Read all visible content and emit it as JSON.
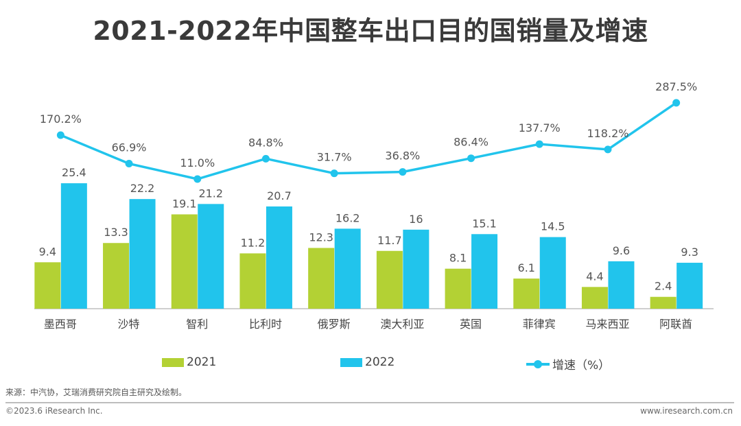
{
  "title": "2021-2022年中国整车出口目的国销量及增速",
  "colors": {
    "bar2021": "#b3d134",
    "bar2022": "#21c4ec",
    "line": "#21c4ec",
    "label": "#555555",
    "axis": "#bfbfbf"
  },
  "chart_data": {
    "type": "bar",
    "title": "2021-2022年中国整车出口目的国销量及增速",
    "xlabel": "",
    "ylabel": "",
    "categories": [
      "墨西哥",
      "沙特",
      "智利",
      "比利时",
      "俄罗斯",
      "澳大利亚",
      "英国",
      "菲律宾",
      "马来西亚",
      "阿联酋"
    ],
    "series": [
      {
        "name": "2021",
        "type": "bar",
        "values": [
          9.4,
          13.3,
          19.1,
          11.2,
          12.3,
          11.7,
          8.1,
          6.1,
          4.4,
          2.4
        ],
        "labels": [
          "9.4",
          "13.3",
          "19.1",
          "11.2",
          "12.3",
          "11.7",
          "8.1",
          "6.1",
          "4.4",
          "2.4"
        ]
      },
      {
        "name": "2022",
        "type": "bar",
        "values": [
          25.4,
          22.2,
          21.2,
          20.7,
          16.2,
          16,
          15.1,
          14.5,
          9.6,
          9.3
        ],
        "labels": [
          "25.4",
          "22.2",
          "21.2",
          "20.7",
          "16.2",
          "16",
          "15.1",
          "14.5",
          "9.6",
          "9.3"
        ]
      },
      {
        "name": "增速（%）",
        "type": "line",
        "axis": "secondary",
        "values": [
          170.2,
          66.9,
          11.0,
          84.8,
          31.7,
          36.8,
          86.4,
          137.7,
          118.2,
          287.5
        ],
        "labels": [
          "170.2%",
          "66.9%",
          "11.0%",
          "84.8%",
          "31.7%",
          "36.8%",
          "86.4%",
          "137.7%",
          "118.2%",
          "287.5%"
        ]
      }
    ],
    "ylim": [
      0,
      30
    ],
    "y2lim": [
      -150,
      350
    ],
    "grid": false,
    "legend": "bottom"
  },
  "legend": {
    "items": [
      "2021",
      "2022",
      "增速（%）"
    ]
  },
  "footer": {
    "source": "来源：中汽协，艾瑞消费研究院自主研究及绘制。",
    "copyright": "©2023.6 iResearch Inc.",
    "website": "www.iresearch.com.cn"
  }
}
